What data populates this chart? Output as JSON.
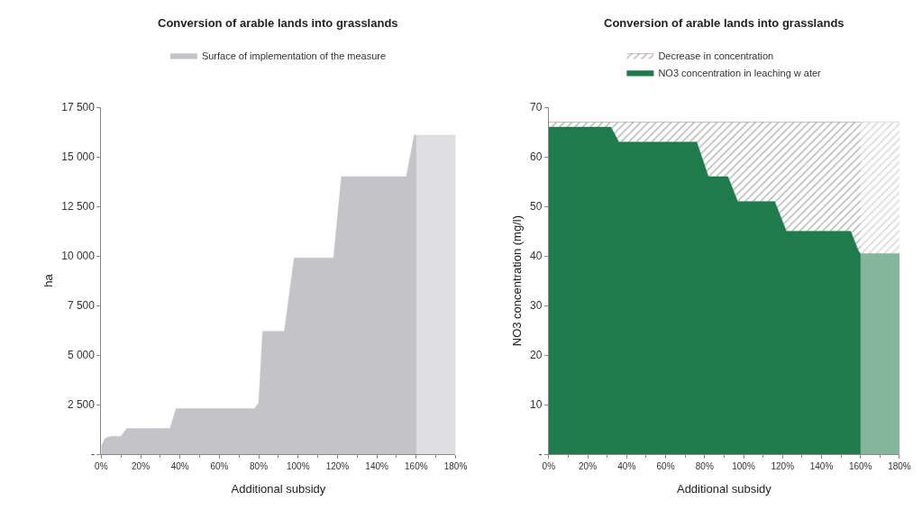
{
  "chart_data": [
    {
      "type": "area",
      "title": "Conversion of arable lands into grasslands",
      "xlabel": "Additional subsidy",
      "ylabel": "ha",
      "legend": "top",
      "xlim": [
        0,
        180
      ],
      "xticks": [
        {
          "value": 0,
          "label": "0%"
        },
        {
          "value": 20,
          "label": "20%"
        },
        {
          "value": 40,
          "label": "40%"
        },
        {
          "value": 60,
          "label": "60%"
        },
        {
          "value": 80,
          "label": "80%"
        },
        {
          "value": 100,
          "label": "100%"
        },
        {
          "value": 120,
          "label": "120%"
        },
        {
          "value": 140,
          "label": "140%"
        },
        {
          "value": 160,
          "label": "160%"
        },
        {
          "value": 180,
          "label": "180%"
        }
      ],
      "ylim": [
        0,
        17500
      ],
      "yticks": [
        {
          "value": 0,
          "label": "-"
        },
        {
          "value": 2500,
          "label": "2 500"
        },
        {
          "value": 5000,
          "label": "5 000"
        },
        {
          "value": 7500,
          "label": "7 500"
        },
        {
          "value": 10000,
          "label": "10 000"
        },
        {
          "value": 12500,
          "label": "12 500"
        },
        {
          "value": 15000,
          "label": "15 000"
        },
        {
          "value": 17500,
          "label": "17 500"
        }
      ],
      "bands": [
        {
          "axis": "x",
          "from": 160,
          "to": 180,
          "color": "#ffffff"
        }
      ],
      "series": [
        {
          "name": "Surface of implementation of the measure",
          "color": "#c4c4c8",
          "x": [
            0,
            2,
            5,
            10,
            13,
            35,
            38,
            78,
            80,
            82,
            93,
            98,
            118,
            122,
            155,
            159,
            180
          ],
          "values": [
            400,
            800,
            900,
            900,
            1300,
            1300,
            2300,
            2300,
            2600,
            6200,
            6200,
            9900,
            9900,
            14000,
            14000,
            16100,
            16100
          ]
        }
      ]
    },
    {
      "type": "area",
      "stacked": true,
      "title": "Conversion of arable lands into grasslands",
      "xlabel": "Additional subsidy",
      "ylabel": "NO3 concentration (mg/l)",
      "legend": "top",
      "xlim": [
        0,
        180
      ],
      "xticks": [
        {
          "value": 0,
          "label": "0%"
        },
        {
          "value": 20,
          "label": "20%"
        },
        {
          "value": 40,
          "label": "40%"
        },
        {
          "value": 60,
          "label": "60%"
        },
        {
          "value": 80,
          "label": "80%"
        },
        {
          "value": 100,
          "label": "100%"
        },
        {
          "value": 120,
          "label": "120%"
        },
        {
          "value": 140,
          "label": "140%"
        },
        {
          "value": 160,
          "label": "160%"
        },
        {
          "value": 180,
          "label": "180%"
        }
      ],
      "ylim": [
        0,
        70
      ],
      "yticks": [
        {
          "value": 0,
          "label": "-"
        },
        10,
        20,
        30,
        40,
        50,
        60,
        70
      ],
      "bands": [
        {
          "axis": "x",
          "from": 160,
          "to": 180,
          "color": "#ffffff"
        }
      ],
      "series": [
        {
          "name": "NO3 concentration in leaching w ater",
          "color": "#1f7a4c",
          "x": [
            0,
            32,
            36,
            76,
            82,
            92,
            97,
            116,
            122,
            155,
            159,
            160,
            180
          ],
          "values": [
            66,
            66,
            63,
            63,
            56,
            56,
            51,
            51,
            45,
            45,
            41,
            40.5,
            40.5
          ]
        },
        {
          "name": "Decrease in concentration",
          "color": "#808080",
          "x": [
            0,
            32,
            36,
            76,
            82,
            92,
            97,
            116,
            122,
            155,
            159,
            160,
            180
          ],
          "values": [
            1,
            1,
            4,
            4,
            11,
            11,
            16,
            16,
            22,
            22,
            26,
            26.5,
            26.5
          ]
        }
      ]
    }
  ]
}
